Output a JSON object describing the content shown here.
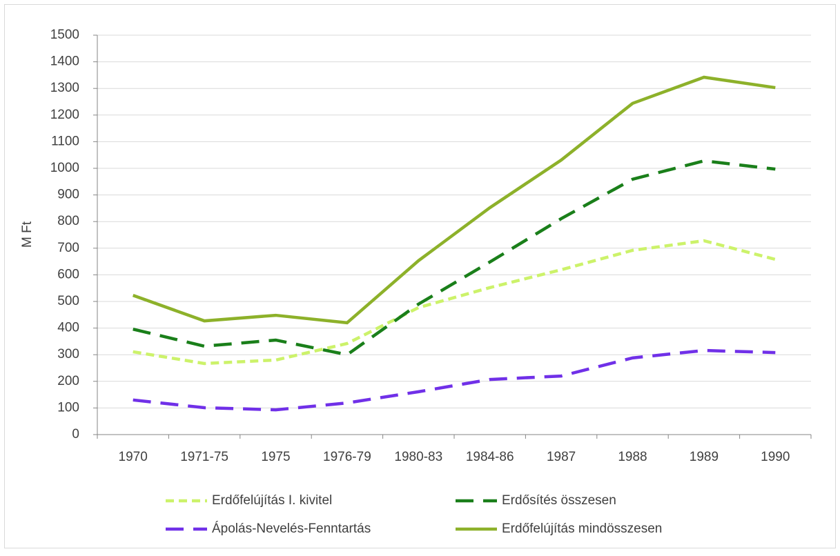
{
  "chart_data": {
    "type": "line",
    "y_label": "M Ft",
    "categories": [
      "1970",
      "1971-75",
      "1975",
      "1976-79",
      "1980-83",
      "1984-86",
      "1987",
      "1988",
      "1989",
      "1990"
    ],
    "series": [
      {
        "name": "Erdőfelújítás I. kivitel",
        "color": "#ccf26a",
        "dash": "short",
        "values": [
          311,
          267,
          280,
          342,
          477,
          552,
          619,
          692,
          728,
          658
        ]
      },
      {
        "name": "Erdősítés összesen",
        "color": "#1a7f1a",
        "dash": "long",
        "values": [
          396,
          332,
          355,
          300,
          490,
          648,
          811,
          959,
          1028,
          997
        ]
      },
      {
        "name": "Ápolás-Nevelés-Fenntartás",
        "color": "#7030e8",
        "dash": "long",
        "values": [
          130,
          101,
          93,
          119,
          161,
          207,
          220,
          288,
          316,
          308
        ]
      },
      {
        "name": "Erdőfelújítás mindösszesen",
        "color": "#8db12a",
        "dash": "solid",
        "values": [
          523,
          427,
          448,
          420,
          653,
          852,
          1031,
          1244,
          1342,
          1303
        ]
      }
    ],
    "ylim": [
      0,
      1500
    ],
    "yticks": [
      0,
      100,
      200,
      300,
      400,
      500,
      600,
      700,
      800,
      900,
      1000,
      1100,
      1200,
      1300,
      1400,
      1500
    ],
    "grid": true,
    "legend": "bottom"
  }
}
